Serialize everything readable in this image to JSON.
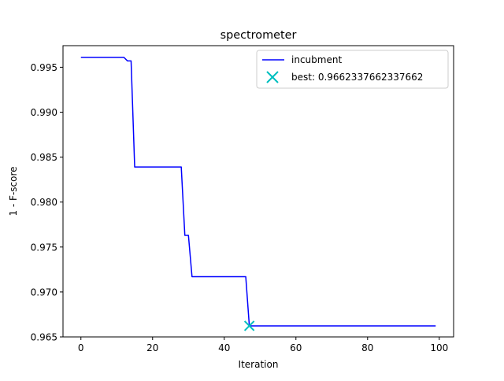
{
  "chart_data": {
    "type": "line",
    "title": "spectrometer",
    "xlabel": "Iteration",
    "ylabel": "1 - F-score",
    "xlim": [
      -5,
      104
    ],
    "ylim": [
      0.965,
      0.9974
    ],
    "xticks": [
      0,
      20,
      40,
      60,
      80,
      100
    ],
    "xtick_labels": [
      "0",
      "20",
      "40",
      "60",
      "80",
      "100"
    ],
    "yticks": [
      0.965,
      0.97,
      0.975,
      0.98,
      0.985,
      0.99,
      0.995
    ],
    "ytick_labels": [
      "0.965",
      "0.970",
      "0.975",
      "0.980",
      "0.985",
      "0.990",
      "0.995"
    ],
    "grid": false,
    "legend_position": "upper-right",
    "series": [
      {
        "name": "incubment",
        "color": "#0000ff",
        "x": [
          0,
          12,
          13,
          14,
          15,
          28,
          29,
          30,
          31,
          46,
          47,
          99
        ],
        "y": [
          0.9961,
          0.9961,
          0.9957,
          0.9957,
          0.9839,
          0.9839,
          0.9763,
          0.9763,
          0.9717,
          0.9717,
          0.96623,
          0.96623
        ]
      }
    ],
    "markers": [
      {
        "name": "best: 0.9662337662337662",
        "color": "#00bfbf",
        "symbol": "x",
        "x": 47,
        "y": 0.9662337662337662
      }
    ]
  }
}
